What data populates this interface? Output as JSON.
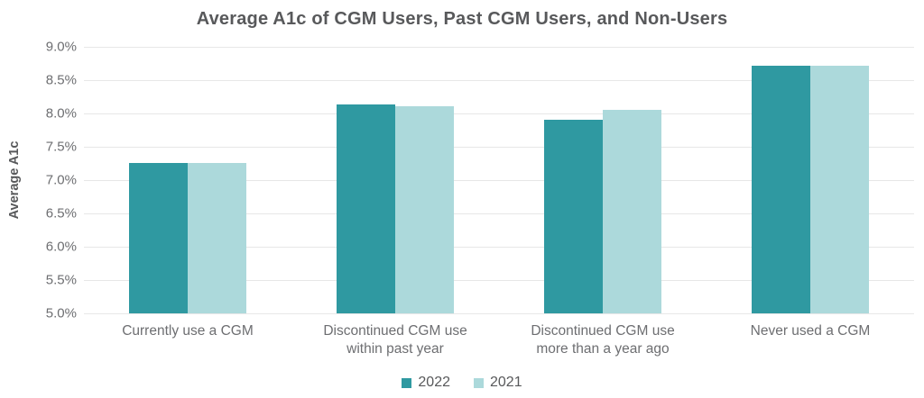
{
  "chart_data": {
    "type": "bar",
    "title": "Average A1c of CGM Users, Past CGM Users, and Non-Users",
    "ylabel": "Average A1c",
    "xlabel": "",
    "categories": [
      "Currently use a CGM",
      "Discontinued CGM use\nwithin past year",
      "Discontinued CGM use\nmore than a year ago",
      "Never used a CGM"
    ],
    "series": [
      {
        "name": "2022",
        "color": "#2F99A1",
        "values": [
          7.25,
          8.13,
          7.9,
          8.72
        ]
      },
      {
        "name": "2021",
        "color": "#ACD9DB",
        "values": [
          7.25,
          8.11,
          8.05,
          8.72
        ]
      }
    ],
    "ylim": [
      5.0,
      9.0
    ],
    "ytick_step": 0.5,
    "ytick_labels": [
      "9.0%",
      "8.5%",
      "8.0%",
      "7.5%",
      "7.0%",
      "6.5%",
      "6.0%",
      "5.5%",
      "5.0%"
    ],
    "grid": true,
    "legend_position": "bottom"
  },
  "colors": {
    "series_2022": "#2F99A1",
    "series_2021": "#ACD9DB",
    "title_text": "#58595B",
    "axis_text": "#6D6E71",
    "gridline": "#E7E7E7",
    "background": "#FFFFFF"
  }
}
